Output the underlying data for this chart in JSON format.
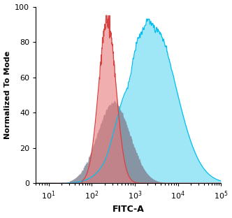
{
  "title": "",
  "xlabel": "FITC-A",
  "ylabel": "Normalized To Mode",
  "ylim": [
    0,
    100
  ],
  "yticks": [
    0,
    20,
    40,
    60,
    80,
    100
  ],
  "xticks": [
    10,
    100,
    1000,
    10000,
    100000
  ],
  "bg_color": "#ffffff",
  "gray_color": "#7a7a8a",
  "gray_fill": "#808090",
  "red_color": "#d94040",
  "red_fill": "#e87878",
  "cyan_color": "#00bfee",
  "cyan_fill": "#40d0f0",
  "gray_alpha": 0.8,
  "red_alpha": 0.6,
  "cyan_alpha": 0.5
}
